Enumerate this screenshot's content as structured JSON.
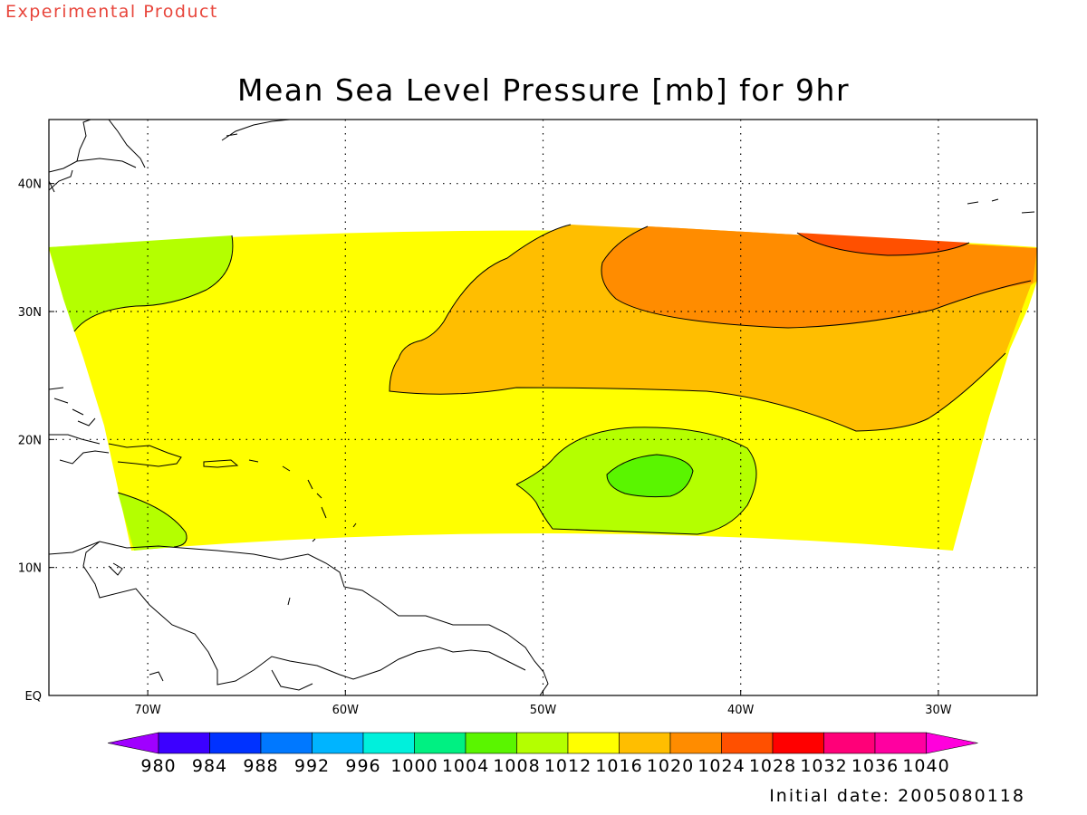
{
  "header": {
    "banner": "Experimental Product",
    "title": "Mean Sea Level Pressure [mb] for 9hr"
  },
  "footer": {
    "initial_date": "Initial date: 2005080118"
  },
  "map": {
    "lon_range": [
      -75,
      -25
    ],
    "lat_range": [
      0,
      45
    ],
    "lon_ticks": [
      {
        "value": -70,
        "label": "70W"
      },
      {
        "value": -60,
        "label": "60W"
      },
      {
        "value": -50,
        "label": "50W"
      },
      {
        "value": -40,
        "label": "40W"
      },
      {
        "value": -30,
        "label": "30W"
      }
    ],
    "lat_ticks": [
      {
        "value": 0,
        "label": "EQ"
      },
      {
        "value": 10,
        "label": "10N"
      },
      {
        "value": 20,
        "label": "20N"
      },
      {
        "value": 30,
        "label": "30N"
      },
      {
        "value": 40,
        "label": "40N"
      }
    ],
    "gridlines": "dotted"
  },
  "colorbar": {
    "labels": [
      "980",
      "984",
      "988",
      "992",
      "996",
      "1000",
      "1004",
      "1008",
      "1012",
      "1016",
      "1020",
      "1024",
      "1028",
      "1032",
      "1036",
      "1040"
    ],
    "colors": [
      "#a000ff",
      "#3c00ff",
      "#0032ff",
      "#0078ff",
      "#00b4ff",
      "#00f0dc",
      "#00f082",
      "#5af500",
      "#b4ff00",
      "#ffff00",
      "#ffbe00",
      "#ff8c00",
      "#ff5000",
      "#ff0000",
      "#ff0078",
      "#ff00a0",
      "#ff00dc"
    ]
  },
  "fills": {
    "c1008": "#b4ff00",
    "c1012": "#ffff00",
    "c1016": "#ffbe00",
    "c1020": "#ff8c00",
    "c1024": "#ff5000",
    "c1004": "#5af500"
  }
}
